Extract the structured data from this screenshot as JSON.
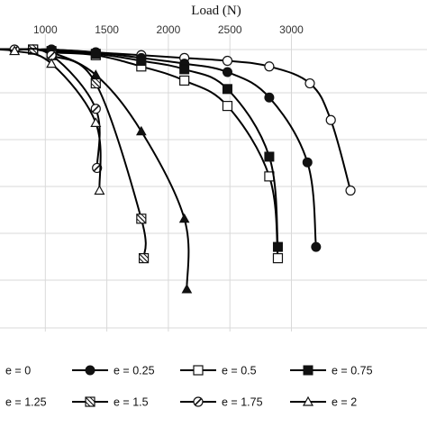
{
  "chart_data": {
    "type": "line",
    "xlabel": "Load (N)",
    "ylabel": "",
    "title": "",
    "xlim": [
      500,
      3500
    ],
    "x_ticks": [
      "500",
      "1000",
      "1500",
      "2000",
      "2500",
      "3000"
    ],
    "ylim": [
      0,
      100
    ],
    "grid": true,
    "legend_position": "bottom",
    "series": [
      {
        "name": "e = 0",
        "marker": "open-circle",
        "points": [
          [
            500,
            100
          ],
          [
            900,
            100
          ],
          [
            1050,
            100
          ],
          [
            1410,
            99
          ],
          [
            1780,
            98
          ],
          [
            2130,
            97
          ],
          [
            2480,
            96
          ],
          [
            2820,
            94
          ],
          [
            3150,
            88
          ],
          [
            3320,
            75
          ],
          [
            3480,
            50
          ]
        ]
      },
      {
        "name": "e = 0.25",
        "marker": "filled-circle",
        "points": [
          [
            500,
            100
          ],
          [
            900,
            100
          ],
          [
            1050,
            100
          ],
          [
            1410,
            99
          ],
          [
            1780,
            97
          ],
          [
            2130,
            95
          ],
          [
            2480,
            92
          ],
          [
            2820,
            83
          ],
          [
            3130,
            60
          ],
          [
            3200,
            30
          ]
        ]
      },
      {
        "name": "e = 0.5",
        "marker": "open-square",
        "points": [
          [
            500,
            100
          ],
          [
            900,
            100
          ],
          [
            1050,
            99
          ],
          [
            1410,
            98
          ],
          [
            1780,
            94
          ],
          [
            2130,
            89
          ],
          [
            2480,
            80
          ],
          [
            2820,
            55
          ],
          [
            2890,
            26
          ]
        ]
      },
      {
        "name": "e = 0.75",
        "marker": "filled-square",
        "points": [
          [
            500,
            100
          ],
          [
            900,
            100
          ],
          [
            1050,
            99.5
          ],
          [
            1410,
            98.5
          ],
          [
            1780,
            96
          ],
          [
            2130,
            93
          ],
          [
            2480,
            86
          ],
          [
            2820,
            62
          ],
          [
            2890,
            30
          ]
        ]
      },
      {
        "name": "e = 1.25",
        "marker": "filled-triangle",
        "points": [
          [
            500,
            100
          ],
          [
            900,
            100
          ],
          [
            1050,
            99
          ],
          [
            1410,
            91
          ],
          [
            1780,
            71
          ],
          [
            2130,
            40
          ],
          [
            2150,
            15
          ]
        ]
      },
      {
        "name": "e = 1.5",
        "marker": "hatched-square",
        "points": [
          [
            500,
            100
          ],
          [
            900,
            100
          ],
          [
            1050,
            98
          ],
          [
            1410,
            88
          ],
          [
            1780,
            40
          ],
          [
            1800,
            26
          ]
        ]
      },
      {
        "name": "e = 1.75",
        "marker": "slashed-circle",
        "points": [
          [
            500,
            100
          ],
          [
            750,
            100
          ],
          [
            1050,
            98
          ],
          [
            1410,
            79
          ],
          [
            1420,
            58
          ]
        ]
      },
      {
        "name": "e = 2",
        "marker": "open-triangle",
        "points": [
          [
            500,
            100
          ],
          [
            750,
            99.5
          ],
          [
            1050,
            95
          ],
          [
            1410,
            74
          ],
          [
            1440,
            50
          ]
        ]
      }
    ]
  }
}
